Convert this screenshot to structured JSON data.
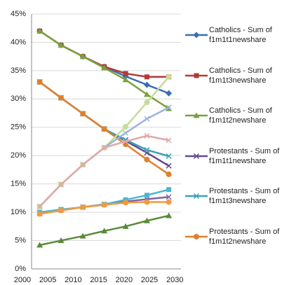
{
  "chart_data": {
    "type": "line",
    "x": [
      2003.4,
      2007.6,
      2011.9,
      2016.1,
      2020.3,
      2024.5,
      2028.8
    ],
    "xlim": [
      2001.8,
      2031.2
    ],
    "xticks": [
      2000,
      2005,
      2010,
      2015,
      2020,
      2025,
      2030
    ],
    "ylim": [
      0,
      45
    ],
    "yticks": [
      {
        "value": 0,
        "label": "0%"
      },
      {
        "value": 5,
        "label": "5%"
      },
      {
        "value": 10,
        "label": "10%"
      },
      {
        "value": 15,
        "label": "15%"
      },
      {
        "value": 20,
        "label": "20%"
      },
      {
        "value": 25,
        "label": "25%"
      },
      {
        "value": 30,
        "label": "30%"
      },
      {
        "value": 35,
        "label": "35%"
      },
      {
        "value": 40,
        "label": "40%"
      },
      {
        "value": 45,
        "label": "45%"
      }
    ],
    "grid": true,
    "legend": "right",
    "series": [
      {
        "name": "Catholics - Sum of f1m1t1newshare",
        "color": "#3a6eb5",
        "marker": "diamond",
        "values": [
          42,
          39.5,
          37.5,
          35.7,
          34.0,
          32.5,
          31.0
        ]
      },
      {
        "name": "Catholics - Sum of f1m1t3newshare",
        "color": "#b23a36",
        "marker": "square",
        "values": [
          42,
          39.5,
          37.5,
          35.7,
          34.5,
          33.9,
          33.9
        ]
      },
      {
        "name": "Catholics - Sum of f1m1t2newshare",
        "color": "#7aa23c",
        "marker": "triangle",
        "values": [
          42,
          39.5,
          37.5,
          35.5,
          33.4,
          30.8,
          28.3
        ]
      },
      {
        "name": "Protestants - Sum of f1m1t1newshare",
        "color": "#644a8a",
        "marker": "x",
        "values": [
          33,
          30.2,
          27.4,
          24.7,
          22.6,
          20.5,
          18.2
        ]
      },
      {
        "name": "Protestants - Sum of f1m1t3newshare",
        "color": "#3aa0b8",
        "marker": "x",
        "values": [
          33,
          30.2,
          27.4,
          24.7,
          22.8,
          21.0,
          19.9
        ]
      },
      {
        "name": "Protestants - Sum of f1m1t2newshare",
        "color": "#e0802c",
        "marker": "circle",
        "values": [
          33,
          30.2,
          27.4,
          24.7,
          22.0,
          19.3,
          16.7
        ]
      },
      {
        "color": "#7e62a8",
        "marker": "x",
        "values": [
          9.8,
          10.4,
          10.9,
          11.4,
          11.9,
          12.3,
          12.7
        ]
      },
      {
        "color": "#4bb6cf",
        "marker": "square",
        "values": [
          10,
          10.5,
          10.9,
          11.4,
          12.2,
          13.0,
          14.0
        ]
      },
      {
        "color": "#f29a3e",
        "marker": "circle",
        "values": [
          9.7,
          10.3,
          10.9,
          11.3,
          11.7,
          11.8,
          11.8
        ]
      },
      {
        "color": "#c5dc9a",
        "marker": "circle",
        "values": [
          11,
          14.9,
          18.4,
          21.4,
          25.1,
          29.4,
          33.9
        ]
      },
      {
        "color": "#9ab3da",
        "marker": "x",
        "values": [
          11,
          14.9,
          18.4,
          21.4,
          24.0,
          26.5,
          28.5
        ]
      },
      {
        "color": "#e0a8a8",
        "marker": "x",
        "values": [
          11,
          14.9,
          18.4,
          21.4,
          22.5,
          23.5,
          22.7
        ]
      },
      {
        "color": "#5a8a3a",
        "marker": "triangle",
        "values": [
          4.2,
          5.0,
          5.8,
          6.7,
          7.5,
          8.5,
          9.4
        ]
      }
    ]
  }
}
